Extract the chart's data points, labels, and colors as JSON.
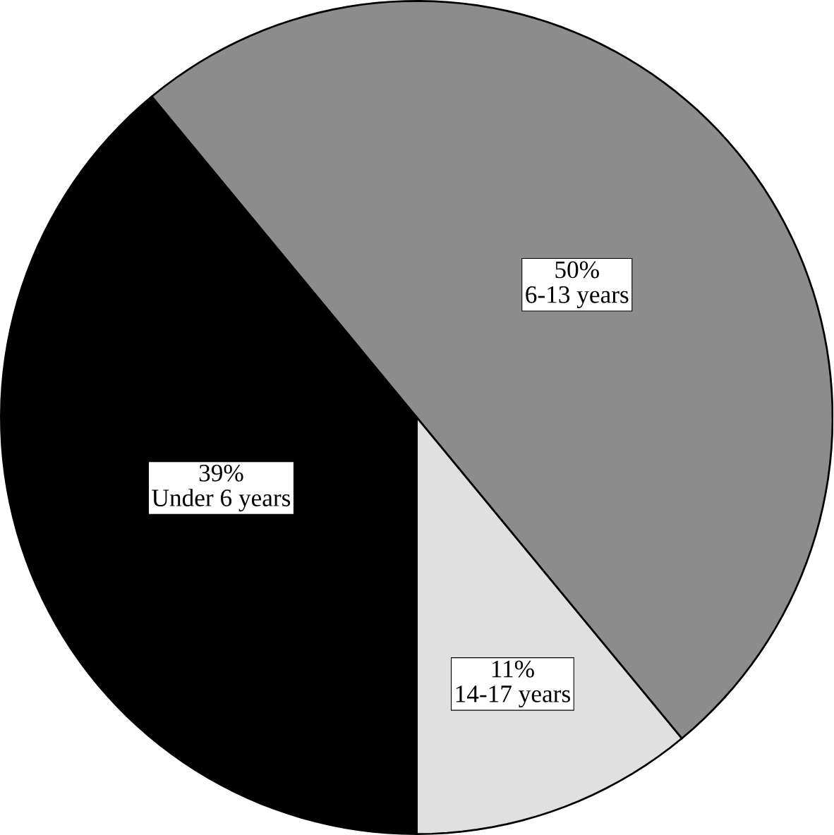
{
  "chart_data": {
    "type": "pie",
    "categories": [
      "6-13 years",
      "14-17 years",
      "Under 6 years"
    ],
    "values": [
      50,
      11,
      39
    ],
    "value_labels": [
      "50%",
      "11%",
      "39%"
    ],
    "colors": [
      "#8c8c8c",
      "#e0e0e0",
      "#000000"
    ]
  }
}
